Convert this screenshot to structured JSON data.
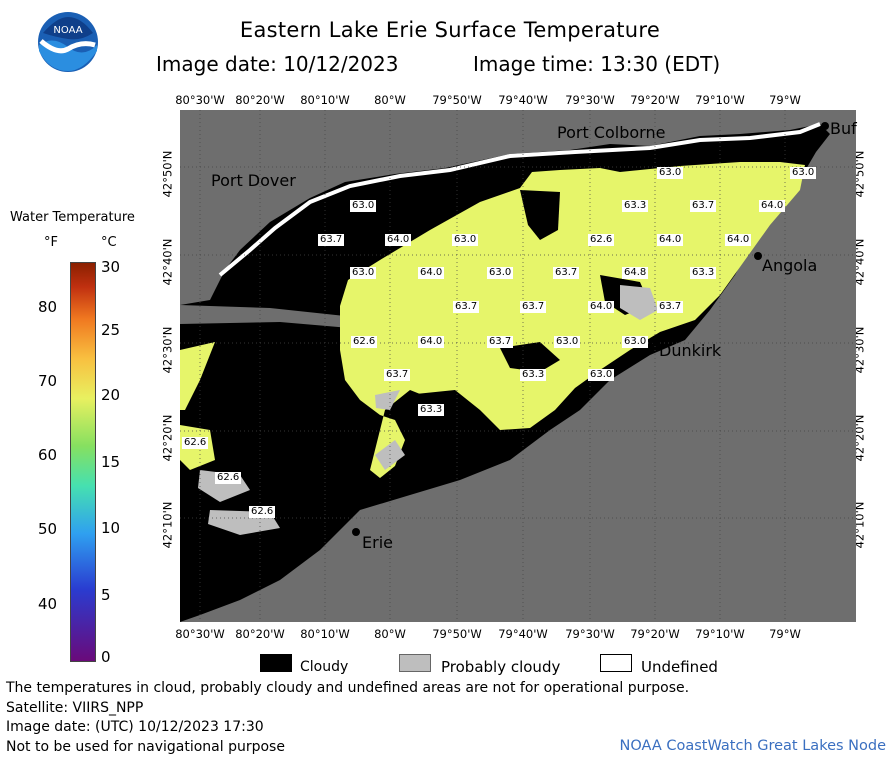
{
  "header": {
    "title": "Eastern Lake Erie Surface Temperature",
    "image_date": "Image date: 10/12/2023",
    "image_time": "Image time: 13:30 (EDT)",
    "logo_text": "NOAA"
  },
  "map": {
    "lon_ticks": [
      "80°30'W",
      "80°20'W",
      "80°10'W",
      "80°W",
      "79°50'W",
      "79°40'W",
      "79°30'W",
      "79°20'W",
      "79°10'W",
      "79°W"
    ],
    "lat_ticks": [
      "42°50'N",
      "42°40'N",
      "42°30'N",
      "42°20'N",
      "42°10'N"
    ],
    "cities": [
      {
        "name": "Port Colborne"
      },
      {
        "name": "Port Dover"
      },
      {
        "name": "Angola"
      },
      {
        "name": "Dunkirk"
      },
      {
        "name": "Erie"
      },
      {
        "name": "Buf"
      }
    ],
    "temperature_labels": [
      "63.0",
      "63.0",
      "63.0",
      "63.3",
      "63.7",
      "64.0",
      "63.7",
      "64.0",
      "63.0",
      "62.6",
      "64.0",
      "64.0",
      "63.0",
      "64.0",
      "63.0",
      "63.7",
      "64.8",
      "63.3",
      "63.7",
      "63.7",
      "64.0",
      "63.7",
      "62.6",
      "64.0",
      "63.7",
      "63.0",
      "63.0",
      "63.7",
      "63.3",
      "63.0",
      "63.3",
      "62.6",
      "62.6",
      "62.6"
    ],
    "colors": {
      "land": "#6e6e6e",
      "cloud": "#000000",
      "probably_cloudy": "#bebebe",
      "undefined": "#ffffff",
      "water": "#e6f56a"
    }
  },
  "legend": {
    "title": "Water Temperature",
    "unit_f": "°F",
    "unit_c": "°C",
    "f_ticks": [
      "80",
      "70",
      "60",
      "50",
      "40"
    ],
    "c_ticks": [
      "30",
      "25",
      "20",
      "15",
      "10",
      "5",
      "0"
    ],
    "scale_min_c": 0,
    "scale_max_c": 30,
    "scale_colors": [
      "#6a0a7a",
      "#2a3cd0",
      "#2fa0f0",
      "#46e0b0",
      "#86e060",
      "#e8f060",
      "#f8c040",
      "#f07820",
      "#c03010",
      "#8a2000"
    ]
  },
  "key": {
    "cloudy": "Cloudy",
    "probably_cloudy": "Probably cloudy",
    "undefined": "Undefined"
  },
  "footer": {
    "line1": "The temperatures in cloud, probably cloudy and undefined areas are not for operational purpose.",
    "line2": "Satellite: VIIRS_NPP",
    "line3": "Image date: (UTC) 10/12/2023  17:30",
    "line4": "Not to be used for navigational purpose",
    "credit": "NOAA CoastWatch Great Lakes Node"
  }
}
